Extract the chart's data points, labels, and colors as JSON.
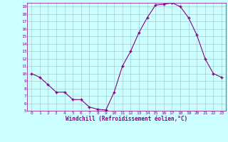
{
  "x": [
    0,
    1,
    2,
    3,
    4,
    5,
    6,
    7,
    8,
    9,
    10,
    11,
    12,
    13,
    14,
    15,
    16,
    17,
    18,
    19,
    20,
    21,
    22,
    23
  ],
  "y": [
    10,
    9.5,
    8.5,
    7.5,
    7.5,
    6.5,
    6.5,
    5.5,
    5.2,
    5.1,
    7.5,
    11,
    13,
    15.5,
    17.5,
    19.2,
    19.3,
    19.5,
    19.0,
    17.5,
    15.2,
    12.0,
    10.0,
    9.5
  ],
  "line_color": "#880088",
  "marker_color": "#880088",
  "bg_color": "#ccffff",
  "grid_color": "#aacccc",
  "axis_label_color": "#880088",
  "tick_color": "#880088",
  "xlabel": "Windchill (Refroidissement éolien,°C)",
  "ylim": [
    5,
    19.5
  ],
  "xlim": [
    -0.5,
    23.5
  ],
  "yticks": [
    5,
    6,
    7,
    8,
    9,
    10,
    11,
    12,
    13,
    14,
    15,
    16,
    17,
    18,
    19
  ],
  "xticks": [
    0,
    1,
    2,
    3,
    4,
    5,
    6,
    7,
    8,
    9,
    10,
    11,
    12,
    13,
    14,
    15,
    16,
    17,
    18,
    19,
    20,
    21,
    22,
    23
  ]
}
